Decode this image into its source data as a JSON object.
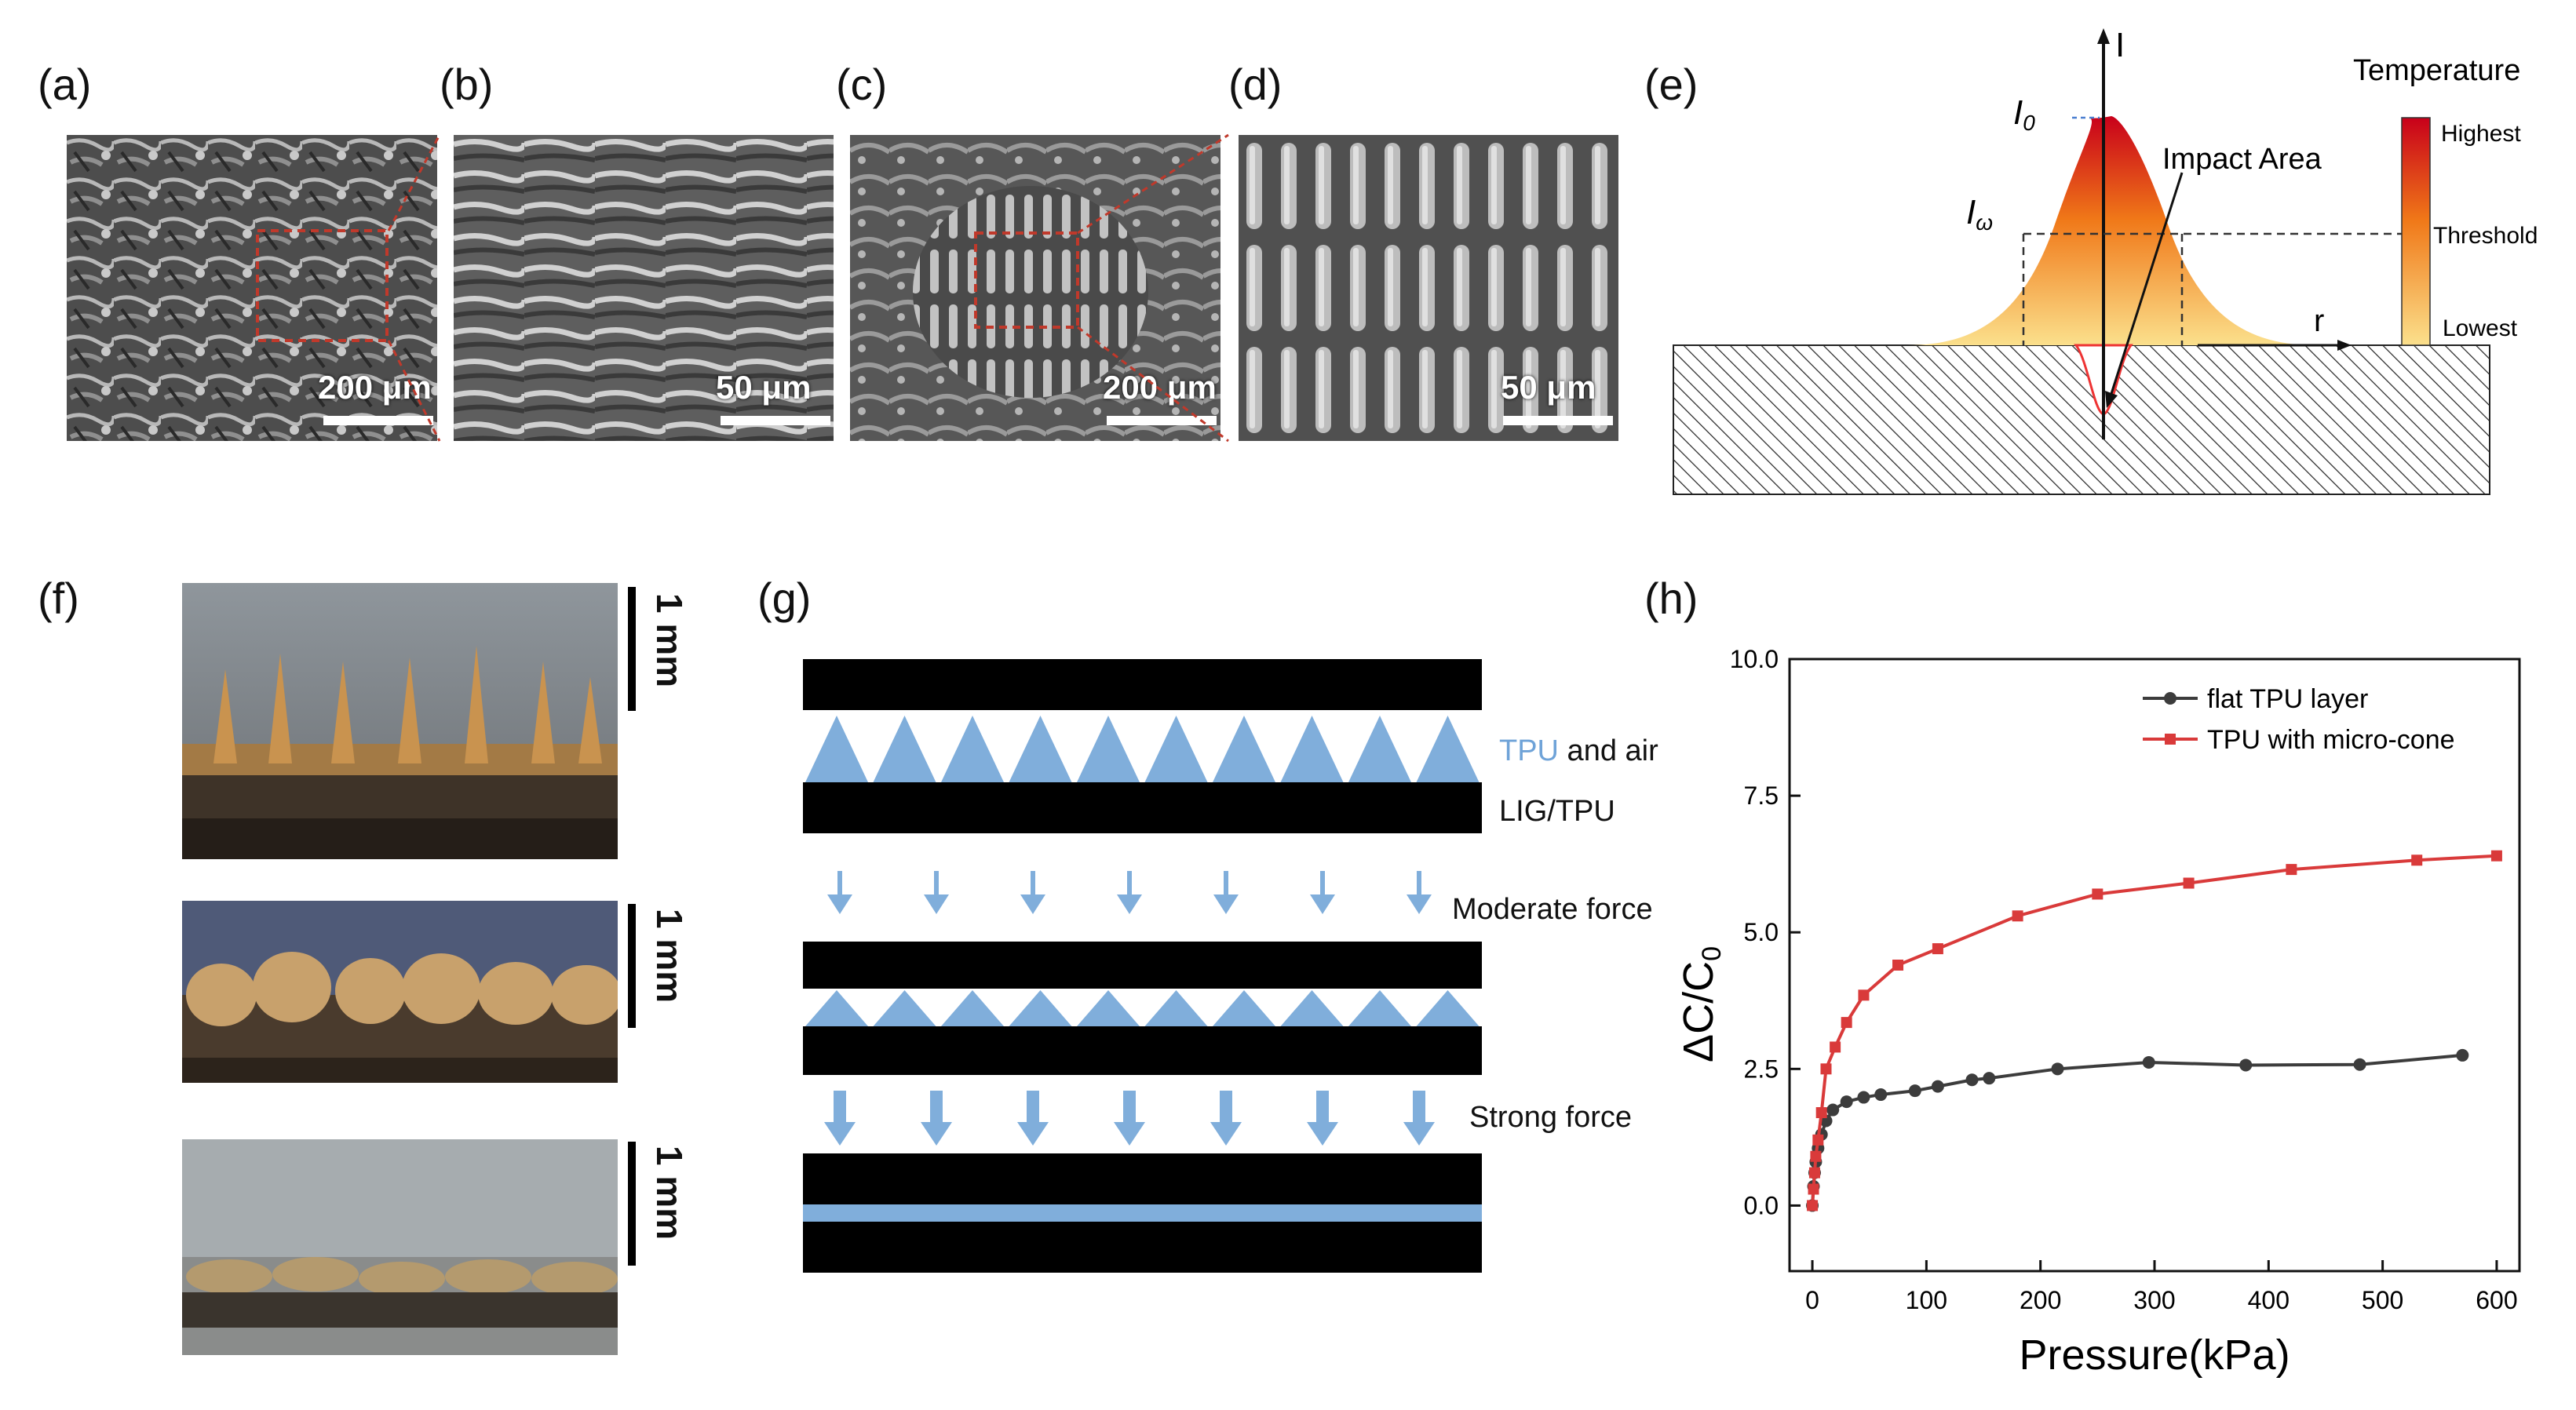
{
  "panels": {
    "a": {
      "label": "(a)",
      "scale_bar": "200 μm"
    },
    "b": {
      "label": "(b)",
      "scale_bar": "50 μm"
    },
    "c": {
      "label": "(c)",
      "scale_bar": "200 μm"
    },
    "d": {
      "label": "(d)",
      "scale_bar": "50 μm"
    },
    "e": {
      "label": "(e)",
      "axis_i": "I",
      "axis_r": "r",
      "i0": "I",
      "i0_sub": "0",
      "iw": "I",
      "iw_sub": "ω",
      "impact_area": "Impact Area",
      "temperature_title": "Temperature",
      "highest": "Highest",
      "threshold": "Threshold",
      "lowest": "Lowest",
      "colors": {
        "hot": "#c8001a",
        "mid": "#f07818",
        "cool": "#fbe08c"
      }
    },
    "f": {
      "label": "(f)",
      "scale_1": "1 mm",
      "scale_2": "1 mm",
      "scale_3": "1 mm"
    },
    "g": {
      "label": "(g)",
      "tpu_word": "TPU",
      "and_air": " and air",
      "lig_tpu": "LIG/TPU",
      "moderate_force": "Moderate force",
      "strong_force": "Strong force",
      "colors": {
        "tpu": "#80aedb",
        "electrode": "#000000"
      }
    },
    "h": {
      "label": "(h)"
    }
  },
  "chart_data": {
    "type": "line",
    "xlabel": "Pressure(kPa)",
    "ylabel": "ΔC/C",
    "ylabel_sub": "0",
    "xlim": [
      -20,
      620
    ],
    "ylim": [
      -1.2,
      10.0
    ],
    "xticks": [
      0,
      100,
      200,
      300,
      400,
      500,
      600
    ],
    "yticks": [
      0.0,
      2.5,
      5.0,
      7.5,
      10.0
    ],
    "ytick_labels": [
      "0.0",
      "2.5",
      "5.0",
      "7.5",
      "10.0"
    ],
    "legend_position": "top-right",
    "grid": false,
    "series": [
      {
        "name": "flat TPU layer",
        "color": "#3c3c3c",
        "marker": "circle",
        "x": [
          0,
          1,
          2,
          3,
          5,
          8,
          12,
          18,
          30,
          45,
          60,
          90,
          110,
          140,
          155,
          215,
          295,
          380,
          480,
          570
        ],
        "y": [
          0.0,
          0.35,
          0.6,
          0.8,
          1.05,
          1.3,
          1.55,
          1.75,
          1.9,
          1.98,
          2.03,
          2.1,
          2.18,
          2.3,
          2.33,
          2.5,
          2.62,
          2.57,
          2.58,
          2.75
        ]
      },
      {
        "name": "TPU with micro-cone",
        "color": "#d93a3a",
        "marker": "square",
        "x": [
          0,
          1,
          2,
          3,
          5,
          8,
          12,
          20,
          30,
          45,
          75,
          110,
          180,
          250,
          330,
          420,
          530,
          600
        ],
        "y": [
          0.0,
          0.3,
          0.6,
          0.9,
          1.2,
          1.7,
          2.5,
          2.9,
          3.35,
          3.85,
          4.4,
          4.7,
          5.3,
          5.7,
          5.9,
          6.15,
          6.32,
          6.4
        ]
      }
    ]
  }
}
